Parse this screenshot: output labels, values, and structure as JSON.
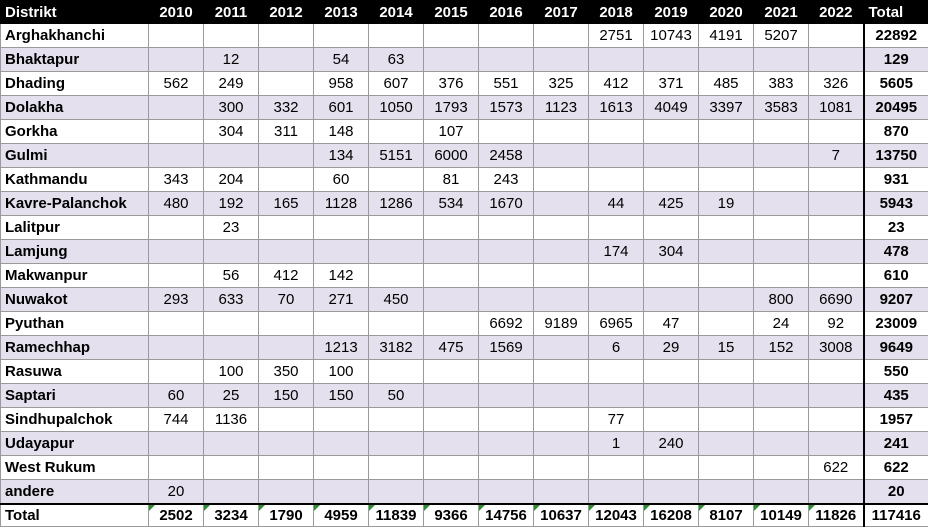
{
  "header": {
    "district_label": "Distrikt",
    "years": [
      "2010",
      "2011",
      "2012",
      "2013",
      "2014",
      "2015",
      "2016",
      "2017",
      "2018",
      "2019",
      "2020",
      "2021",
      "2022"
    ],
    "total_label": "Total"
  },
  "rows": [
    {
      "name": "Arghakhanchi",
      "values": [
        "",
        "",
        "",
        "",
        "",
        "",
        "",
        "",
        "2751",
        "10743",
        "4191",
        "5207",
        ""
      ],
      "total": "22892"
    },
    {
      "name": "Bhaktapur",
      "values": [
        "",
        "12",
        "",
        "54",
        "63",
        "",
        "",
        "",
        "",
        "",
        "",
        "",
        ""
      ],
      "total": "129"
    },
    {
      "name": "Dhading",
      "values": [
        "562",
        "249",
        "",
        "958",
        "607",
        "376",
        "551",
        "325",
        "412",
        "371",
        "485",
        "383",
        "326"
      ],
      "total": "5605"
    },
    {
      "name": "Dolakha",
      "values": [
        "",
        "300",
        "332",
        "601",
        "1050",
        "1793",
        "1573",
        "1123",
        "1613",
        "4049",
        "3397",
        "3583",
        "1081"
      ],
      "total": "20495"
    },
    {
      "name": "Gorkha",
      "values": [
        "",
        "304",
        "311",
        "148",
        "",
        "107",
        "",
        "",
        "",
        "",
        "",
        "",
        ""
      ],
      "total": "870"
    },
    {
      "name": "Gulmi",
      "values": [
        "",
        "",
        "",
        "134",
        "5151",
        "6000",
        "2458",
        "",
        "",
        "",
        "",
        "",
        "7"
      ],
      "total": "13750"
    },
    {
      "name": "Kathmandu",
      "values": [
        "343",
        "204",
        "",
        "60",
        "",
        "81",
        "243",
        "",
        "",
        "",
        "",
        "",
        ""
      ],
      "total": "931"
    },
    {
      "name": "Kavre-Palanchok",
      "values": [
        "480",
        "192",
        "165",
        "1128",
        "1286",
        "534",
        "1670",
        "",
        "44",
        "425",
        "19",
        "",
        ""
      ],
      "total": "5943"
    },
    {
      "name": "Lalitpur",
      "values": [
        "",
        "23",
        "",
        "",
        "",
        "",
        "",
        "",
        "",
        "",
        "",
        "",
        ""
      ],
      "total": "23"
    },
    {
      "name": "Lamjung",
      "values": [
        "",
        "",
        "",
        "",
        "",
        "",
        "",
        "",
        "174",
        "304",
        "",
        "",
        ""
      ],
      "total": "478"
    },
    {
      "name": "Makwanpur",
      "values": [
        "",
        "56",
        "412",
        "142",
        "",
        "",
        "",
        "",
        "",
        "",
        "",
        "",
        ""
      ],
      "total": "610"
    },
    {
      "name": "Nuwakot",
      "values": [
        "293",
        "633",
        "70",
        "271",
        "450",
        "",
        "",
        "",
        "",
        "",
        "",
        "800",
        "6690"
      ],
      "total": "9207"
    },
    {
      "name": "Pyuthan",
      "values": [
        "",
        "",
        "",
        "",
        "",
        "",
        "6692",
        "9189",
        "6965",
        "47",
        "",
        "24",
        "92"
      ],
      "total": "23009"
    },
    {
      "name": "Ramechhap",
      "values": [
        "",
        "",
        "",
        "1213",
        "3182",
        "475",
        "1569",
        "",
        "6",
        "29",
        "15",
        "152",
        "3008"
      ],
      "total": "9649"
    },
    {
      "name": "Rasuwa",
      "values": [
        "",
        "100",
        "350",
        "100",
        "",
        "",
        "",
        "",
        "",
        "",
        "",
        "",
        ""
      ],
      "total": "550"
    },
    {
      "name": "Saptari",
      "values": [
        "60",
        "25",
        "150",
        "150",
        "50",
        "",
        "",
        "",
        "",
        "",
        "",
        "",
        ""
      ],
      "total": "435"
    },
    {
      "name": "Sindhupalchok",
      "values": [
        "744",
        "1136",
        "",
        "",
        "",
        "",
        "",
        "",
        "77",
        "",
        "",
        "",
        ""
      ],
      "total": "1957"
    },
    {
      "name": "Udayapur",
      "values": [
        "",
        "",
        "",
        "",
        "",
        "",
        "",
        "",
        "1",
        "240",
        "",
        "",
        ""
      ],
      "total": "241"
    },
    {
      "name": "West Rukum",
      "values": [
        "",
        "",
        "",
        "",
        "",
        "",
        "",
        "",
        "",
        "",
        "",
        "",
        "622"
      ],
      "total": "622"
    },
    {
      "name": "andere",
      "values": [
        "20",
        "",
        "",
        "",
        "",
        "",
        "",
        "",
        "",
        "",
        "",
        "",
        ""
      ],
      "total": "20"
    }
  ],
  "footer": {
    "label": "Total",
    "values": [
      "2502",
      "3234",
      "1790",
      "4959",
      "11839",
      "9366",
      "14756",
      "10637",
      "12043",
      "16208",
      "8107",
      "10149",
      "11826"
    ],
    "total": "117416"
  }
}
